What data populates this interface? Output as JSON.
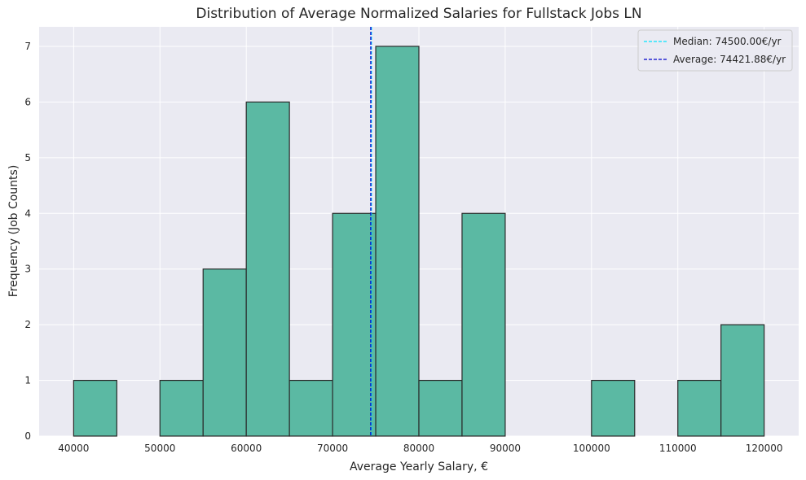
{
  "chart_data": {
    "type": "bar",
    "title": "Distribution of Average Normalized Salaries for Fullstack Jobs LN",
    "xlabel": "Average Yearly Salary, €",
    "ylabel": "Frequency (Job Counts)",
    "xlim": [
      36000,
      124000
    ],
    "ylim": [
      0,
      7.35
    ],
    "xticks": [
      40000,
      50000,
      60000,
      70000,
      80000,
      90000,
      100000,
      110000,
      120000
    ],
    "xtick_labels": [
      "40000",
      "50000",
      "60000",
      "70000",
      "80000",
      "90000",
      "100000",
      "110000",
      "120000"
    ],
    "yticks": [
      0,
      1,
      2,
      3,
      4,
      5,
      6,
      7
    ],
    "ytick_labels": [
      "0",
      "1",
      "2",
      "3",
      "4",
      "5",
      "6",
      "7"
    ],
    "bins": [
      {
        "start": 40000,
        "end": 45000,
        "count": 1
      },
      {
        "start": 45000,
        "end": 50000,
        "count": 0
      },
      {
        "start": 50000,
        "end": 55000,
        "count": 1
      },
      {
        "start": 55000,
        "end": 60000,
        "count": 3
      },
      {
        "start": 60000,
        "end": 65000,
        "count": 6
      },
      {
        "start": 65000,
        "end": 70000,
        "count": 1
      },
      {
        "start": 70000,
        "end": 75000,
        "count": 4
      },
      {
        "start": 75000,
        "end": 80000,
        "count": 7
      },
      {
        "start": 80000,
        "end": 85000,
        "count": 1
      },
      {
        "start": 85000,
        "end": 90000,
        "count": 4
      },
      {
        "start": 90000,
        "end": 95000,
        "count": 0
      },
      {
        "start": 95000,
        "end": 100000,
        "count": 0
      },
      {
        "start": 100000,
        "end": 105000,
        "count": 1
      },
      {
        "start": 105000,
        "end": 110000,
        "count": 0
      },
      {
        "start": 110000,
        "end": 115000,
        "count": 1
      },
      {
        "start": 115000,
        "end": 120000,
        "count": 2
      }
    ],
    "reference_lines": [
      {
        "name": "median",
        "value": 74500.0,
        "label": "Median: 74500.00€/yr",
        "color": "#00e5ff"
      },
      {
        "name": "average",
        "value": 74421.88,
        "label": "Average: 74421.88€/yr",
        "color": "#0000cc"
      }
    ],
    "legend_position": "top-right",
    "grid": true,
    "colors": {
      "bar_fill": "#5bb9a3",
      "bar_edge": "#2a2a2a",
      "plot_background": "#eaeaf2",
      "grid": "#ffffff"
    }
  }
}
